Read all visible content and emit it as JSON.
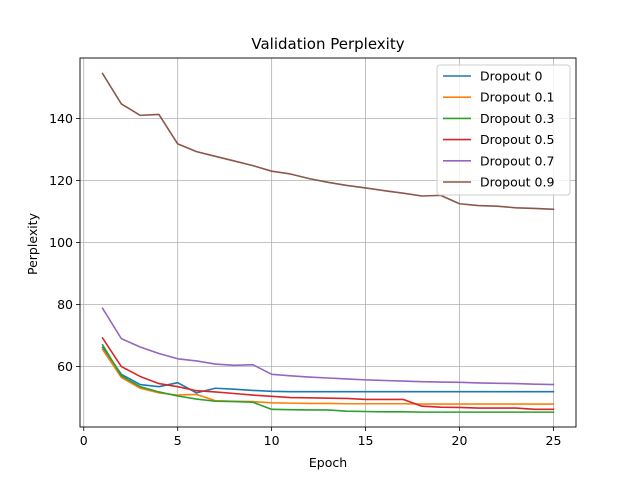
{
  "chart_data": {
    "type": "line",
    "title": "Validation Perplexity",
    "xlabel": "Epoch",
    "ylabel": "Perplexity",
    "xlim": [
      -0.2,
      26.2
    ],
    "ylim": [
      40.5,
      159.5
    ],
    "xticks": [
      0,
      5,
      10,
      15,
      20,
      25
    ],
    "yticks": [
      60,
      80,
      100,
      120,
      140
    ],
    "grid": true,
    "legend": "top-right",
    "x": [
      1,
      2,
      3,
      4,
      5,
      6,
      7,
      8,
      9,
      10,
      11,
      12,
      13,
      14,
      15,
      16,
      17,
      18,
      19,
      20,
      21,
      22,
      23,
      24,
      25
    ],
    "series": [
      {
        "name": "Dropout 0",
        "color": "#1f77b4",
        "values": [
          66.2,
          57.5,
          54.2,
          53.5,
          54.8,
          51.5,
          53.0,
          52.7,
          52.3,
          52.0,
          51.9,
          51.9,
          51.9,
          51.9,
          51.9,
          51.9,
          51.9,
          51.9,
          51.9,
          51.9,
          51.9,
          51.9,
          51.9,
          51.9,
          51.9
        ]
      },
      {
        "name": "Dropout 0.1",
        "color": "#ff7f0e",
        "values": [
          65.5,
          56.5,
          53.0,
          51.5,
          50.8,
          51.0,
          49.0,
          48.8,
          48.7,
          48.3,
          48.2,
          48.1,
          48.1,
          48.0,
          48.0,
          48.0,
          48.0,
          47.9,
          47.9,
          47.9,
          47.9,
          47.9,
          47.9,
          47.9,
          47.9
        ]
      },
      {
        "name": "Dropout 0.3",
        "color": "#2ca02c",
        "values": [
          67.0,
          57.0,
          53.5,
          51.8,
          50.5,
          49.5,
          48.8,
          48.7,
          48.5,
          46.2,
          46.1,
          46.0,
          46.0,
          45.6,
          45.5,
          45.4,
          45.4,
          45.3,
          45.3,
          45.3,
          45.3,
          45.3,
          45.3,
          45.3,
          45.3
        ]
      },
      {
        "name": "Dropout 0.5",
        "color": "#d62728",
        "values": [
          69.2,
          60.0,
          56.8,
          54.5,
          53.5,
          52.2,
          51.8,
          51.3,
          50.8,
          50.4,
          50.0,
          49.9,
          49.8,
          49.7,
          49.4,
          49.4,
          49.4,
          47.2,
          46.9,
          46.8,
          46.6,
          46.6,
          46.6,
          46.2,
          46.2
        ]
      },
      {
        "name": "Dropout 0.7",
        "color": "#9467bd",
        "values": [
          78.8,
          69.0,
          66.3,
          64.2,
          62.5,
          61.8,
          60.8,
          60.4,
          60.6,
          57.5,
          57.0,
          56.6,
          56.3,
          56.0,
          55.7,
          55.5,
          55.3,
          55.1,
          55.0,
          54.9,
          54.7,
          54.6,
          54.5,
          54.3,
          54.2
        ]
      },
      {
        "name": "Dropout 0.9",
        "color": "#8c564b",
        "values": [
          154.5,
          144.7,
          141.0,
          141.3,
          131.8,
          129.3,
          127.8,
          126.3,
          124.8,
          123.0,
          122.1,
          120.6,
          119.4,
          118.4,
          117.6,
          116.7,
          115.9,
          115.0,
          115.2,
          112.5,
          111.9,
          111.7,
          111.2,
          111.0,
          110.7
        ]
      }
    ]
  }
}
